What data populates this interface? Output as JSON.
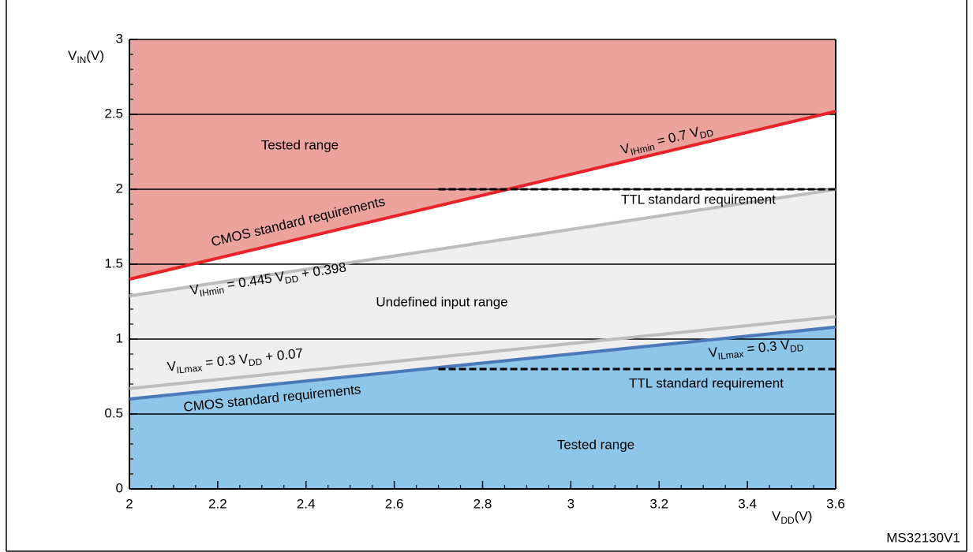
{
  "chart_data": {
    "type": "line",
    "xlabel": [
      "V",
      "DD",
      "(V)"
    ],
    "ylabel": [
      "V",
      "IN",
      "(V)"
    ],
    "xlim": [
      2,
      3.6
    ],
    "xticks": [
      2,
      2.2,
      2.4,
      2.6,
      2.8,
      3,
      3.2,
      3.4,
      3.6
    ],
    "ylim": [
      0,
      3
    ],
    "yticks": [
      0,
      0.5,
      1,
      1.5,
      2,
      2.5,
      3
    ],
    "grid": true,
    "minor_ticks": {
      "x": 0.05,
      "y": 0.1
    },
    "series": [
      {
        "label": [
          "V",
          "IHmin",
          " = 0.7 V",
          "DD"
        ],
        "color": "#e8232a",
        "fill": "#eca39d",
        "fill_side": "above",
        "x": [
          2,
          3.6
        ],
        "values": [
          1.4,
          2.52
        ]
      },
      {
        "label": [
          "V",
          "IHmin",
          " = 0.445 V",
          "DD",
          " + 0.398"
        ],
        "color": "#bdbdbd",
        "fill": "#eeefee",
        "fill_side": "below",
        "x": [
          2,
          3.6
        ],
        "values": [
          1.288,
          1.999
        ]
      },
      {
        "label": [
          "V",
          "ILmax",
          " = 0.3 V",
          "DD",
          " + 0.07"
        ],
        "color": "#bdbdbd",
        "x": [
          2,
          3.6
        ],
        "values": [
          0.67,
          1.15
        ]
      },
      {
        "label": [
          "V",
          "ILmax",
          " = 0.3 V",
          "DD"
        ],
        "color": "#4a78b8",
        "fill": "#8ec6ea",
        "fill_side": "below",
        "x": [
          2,
          3.6
        ],
        "values": [
          0.6,
          1.08
        ]
      },
      {
        "color": "#000000",
        "dashed": true,
        "x": [
          2.7,
          3.6
        ],
        "values": [
          2,
          2
        ]
      },
      {
        "color": "#000000",
        "dashed": true,
        "x": [
          2.7,
          3.6
        ],
        "values": [
          0.8,
          0.8
        ]
      }
    ],
    "annotations": [
      "Tested range",
      "CMOS standard requirements",
      "TTL standard requirement",
      "Undefined input range",
      "CMOS standard requirements",
      "TTL standard requirement",
      "Tested range",
      "MS32130V1"
    ]
  }
}
